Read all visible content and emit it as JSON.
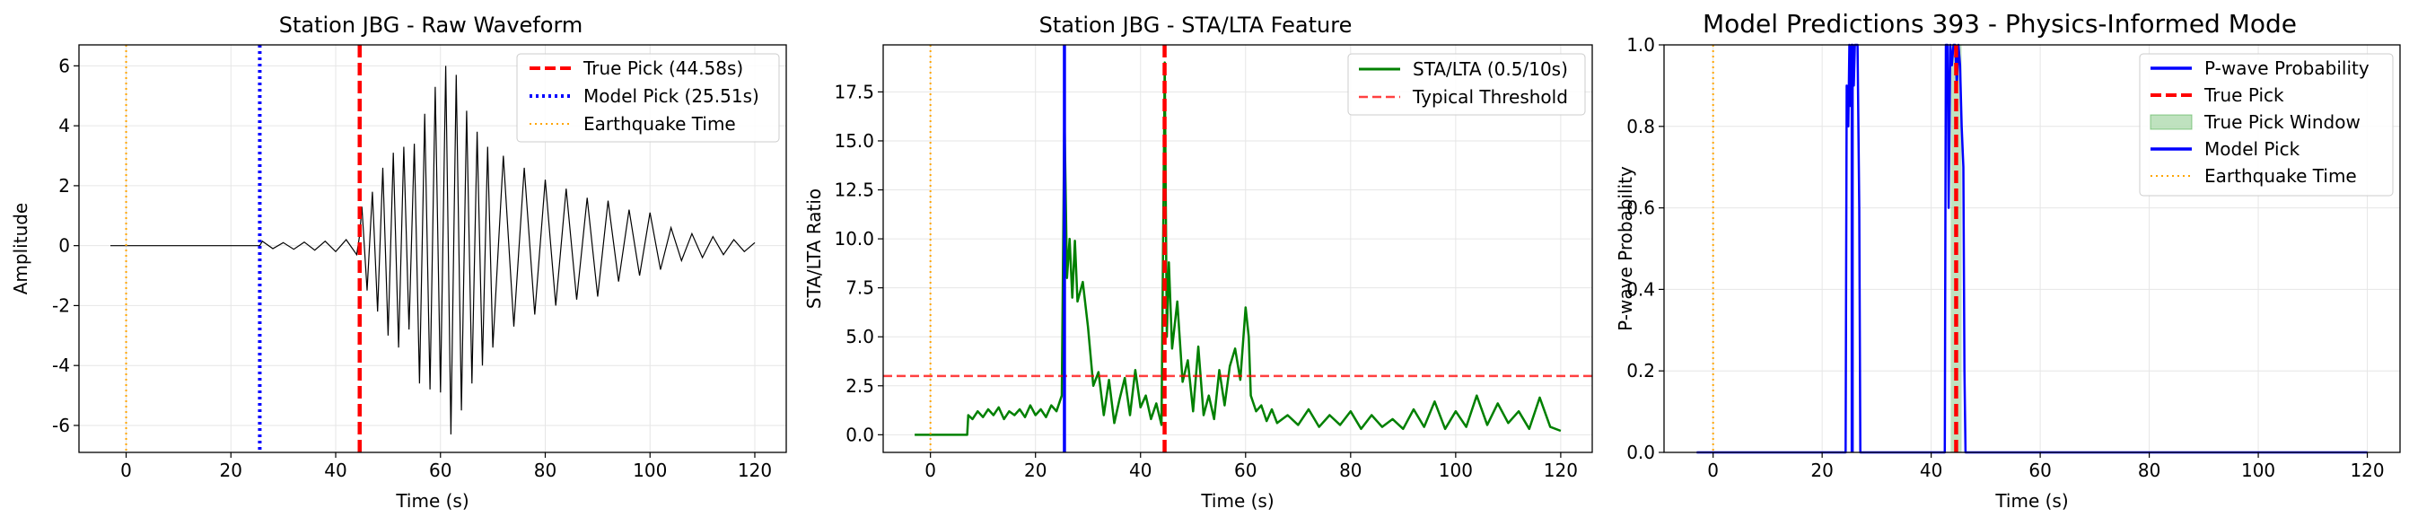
{
  "chart_data": [
    {
      "type": "line",
      "title": "Station JBG - Raw Waveform",
      "xlabel": "Time (s)",
      "ylabel": "Amplitude",
      "xlim": [
        -9,
        126
      ],
      "ylim": [
        -6.9,
        6.7
      ],
      "xticks": [
        0,
        20,
        40,
        60,
        80,
        100,
        120
      ],
      "yticks": [
        -6,
        -4,
        -2,
        0,
        2,
        4,
        6
      ],
      "grid": true,
      "legend_position": "top-right",
      "legend": [
        "True Pick (44.58s)",
        "Model Pick (25.51s)",
        "Earthquake Time"
      ],
      "waveform": {
        "color": "#000000",
        "t": [
          -3,
          0,
          10,
          20,
          25,
          25.51,
          26,
          28,
          30,
          32,
          34,
          36,
          38,
          40,
          42,
          44,
          44.58,
          45,
          46,
          47,
          48,
          49,
          50,
          51,
          52,
          53,
          54,
          55,
          56,
          57,
          58,
          59,
          60,
          61,
          62,
          63,
          64,
          65,
          66,
          67,
          68,
          69,
          70,
          72,
          74,
          76,
          78,
          80,
          82,
          84,
          86,
          88,
          90,
          92,
          94,
          96,
          98,
          100,
          102,
          104,
          106,
          108,
          110,
          112,
          114,
          116,
          118,
          120
        ],
        "amp": [
          0,
          0,
          0,
          0,
          0,
          0,
          0.15,
          -0.1,
          0.1,
          -0.12,
          0.12,
          -0.15,
          0.15,
          -0.2,
          0.2,
          -0.3,
          0.35,
          1.3,
          -1.5,
          1.8,
          -2.2,
          2.6,
          -3.0,
          3.1,
          -3.4,
          3.3,
          -2.8,
          3.4,
          -4.6,
          4.4,
          -4.8,
          5.3,
          -4.9,
          6.0,
          -6.3,
          5.7,
          -5.5,
          4.5,
          -4.6,
          3.8,
          -4.0,
          3.3,
          -3.4,
          3.0,
          -2.7,
          2.6,
          -2.3,
          2.2,
          -2.0,
          1.9,
          -1.8,
          1.6,
          -1.7,
          1.5,
          -1.2,
          1.2,
          -1.0,
          1.1,
          -0.8,
          0.6,
          -0.5,
          0.4,
          -0.4,
          0.3,
          -0.3,
          0.2,
          -0.2,
          0.1
        ]
      },
      "vlines": [
        {
          "label": "True Pick (44.58s)",
          "x": 44.58,
          "color": "#ff0000",
          "style": "dashed-thick"
        },
        {
          "label": "Model Pick (25.51s)",
          "x": 25.51,
          "color": "#0000ff",
          "style": "dotted-thick"
        },
        {
          "label": "Earthquake Time",
          "x": 0,
          "color": "#ffa500",
          "style": "dotted-thin"
        }
      ]
    },
    {
      "type": "line",
      "title": "Station JBG - STA/LTA Feature",
      "xlabel": "Time (s)",
      "ylabel": "STA/LTA Ratio",
      "xlim": [
        -9,
        126
      ],
      "ylim": [
        -0.9,
        19.9
      ],
      "xticks": [
        0,
        20,
        40,
        60,
        80,
        100,
        120
      ],
      "yticks": [
        0.0,
        2.5,
        5.0,
        7.5,
        10.0,
        12.5,
        15.0,
        17.5
      ],
      "ytick_labels": [
        "0.0",
        "2.5",
        "5.0",
        "7.5",
        "10.0",
        "12.5",
        "15.0",
        "17.5"
      ],
      "grid": true,
      "legend_position": "top-right",
      "legend": [
        "STA/LTA (0.5/10s)",
        "Typical Threshold"
      ],
      "series": [
        {
          "name": "STA/LTA (0.5/10s)",
          "color": "#008000",
          "t": [
            -3,
            7,
            7.2,
            8,
            9,
            10,
            11,
            12,
            13,
            14,
            15,
            16,
            17,
            18,
            19,
            20,
            21,
            22,
            23,
            24,
            25,
            25.5,
            26,
            26.5,
            27,
            27.5,
            28,
            29,
            30,
            31,
            32,
            33,
            34,
            35,
            36,
            37,
            38,
            39,
            40,
            41,
            42,
            43,
            44,
            44.6,
            45,
            45.4,
            46,
            47,
            48,
            49,
            50,
            51,
            52,
            53,
            54,
            55,
            56,
            57,
            58,
            59,
            60,
            60.6,
            61,
            62,
            63,
            64,
            65,
            66,
            68,
            70,
            72,
            74,
            76,
            78,
            80,
            82,
            84,
            86,
            88,
            90,
            92,
            94,
            96,
            98,
            100,
            102,
            104,
            106,
            108,
            110,
            112,
            114,
            116,
            118,
            120
          ],
          "values": [
            0,
            0,
            1.0,
            0.8,
            1.2,
            0.9,
            1.3,
            1.0,
            1.4,
            0.8,
            1.2,
            1.0,
            1.3,
            0.9,
            1.5,
            1.0,
            1.3,
            0.9,
            1.5,
            1.2,
            2.0,
            16.5,
            8.0,
            10.0,
            7.0,
            9.9,
            6.8,
            7.8,
            5.5,
            2.5,
            3.2,
            1.0,
            2.8,
            0.6,
            1.8,
            2.9,
            1.0,
            3.3,
            1.4,
            2.0,
            0.8,
            1.6,
            0.5,
            19.0,
            5.0,
            8.8,
            4.4,
            6.8,
            2.7,
            3.8,
            1.2,
            4.5,
            1.0,
            2.0,
            0.8,
            3.3,
            1.5,
            3.5,
            4.4,
            2.8,
            6.5,
            5.0,
            2.0,
            1.2,
            1.5,
            0.7,
            1.3,
            0.6,
            1.0,
            0.5,
            1.3,
            0.4,
            1.0,
            0.5,
            1.2,
            0.3,
            1.0,
            0.4,
            0.8,
            0.3,
            1.3,
            0.4,
            1.7,
            0.3,
            1.2,
            0.4,
            2.0,
            0.5,
            1.6,
            0.6,
            1.2,
            0.3,
            1.9,
            0.4,
            0.2
          ]
        }
      ],
      "hlines": [
        {
          "label": "Typical Threshold",
          "y": 3.0,
          "color": "#ff0000",
          "style": "dashed"
        }
      ],
      "vlines": [
        {
          "x": 25.51,
          "color": "#0000ff",
          "style": "solid-thick"
        },
        {
          "x": 44.58,
          "color": "#ff0000",
          "style": "dashed-thick"
        },
        {
          "x": 0,
          "color": "#ffa500",
          "style": "dotted-thin"
        }
      ]
    },
    {
      "type": "line",
      "title": "Model Predictions 393 - Physics-Informed Mode",
      "xlabel": "Time (s)",
      "ylabel": "P-wave Probability",
      "xlim": [
        -9,
        126
      ],
      "ylim": [
        0.0,
        1.0
      ],
      "xticks": [
        0,
        20,
        40,
        60,
        80,
        100,
        120
      ],
      "yticks": [
        0.0,
        0.2,
        0.4,
        0.6,
        0.8,
        1.0
      ],
      "ytick_labels": [
        "0.0",
        "0.2",
        "0.4",
        "0.6",
        "0.8",
        "1.0"
      ],
      "grid": true,
      "legend_position": "top-right",
      "legend": [
        "P-wave Probability",
        "True Pick",
        "True Pick Window",
        "Model Pick",
        "Earthquake Time"
      ],
      "series": [
        {
          "name": "P-wave Probability",
          "color": "#0000ff",
          "t": [
            -3,
            24.3,
            24.5,
            24.8,
            25.0,
            25.2,
            25.4,
            25.6,
            25.8,
            26.0,
            26.2,
            26.5,
            26.8,
            27.0,
            42.5,
            42.7,
            43.0,
            43.2,
            43.5,
            43.8,
            44.1,
            44.4,
            44.7,
            45.0,
            45.3,
            45.6,
            45.9,
            46.1,
            46.3,
            120
          ],
          "values": [
            0,
            0,
            0.9,
            0.8,
            1.0,
            0.85,
            1.0,
            1.0,
            0.9,
            1.0,
            1.0,
            1.0,
            0.6,
            0,
            0,
            1.0,
            1.0,
            0.6,
            1.0,
            0.95,
            1.0,
            1.0,
            0.9,
            1.0,
            0.95,
            0.8,
            0.7,
            0.2,
            0,
            0
          ]
        }
      ],
      "true_pick_window": [
        43.58,
        45.58
      ],
      "vlines": [
        {
          "label": "True Pick",
          "x": 44.58,
          "color": "#ff0000",
          "style": "dashed-thick"
        },
        {
          "label": "Model Pick",
          "x": 25.51,
          "color": "#0000ff",
          "style": "solid-thick"
        },
        {
          "label": "Earthquake Time",
          "x": 0,
          "color": "#ffa500",
          "style": "dotted-thin"
        }
      ]
    }
  ]
}
